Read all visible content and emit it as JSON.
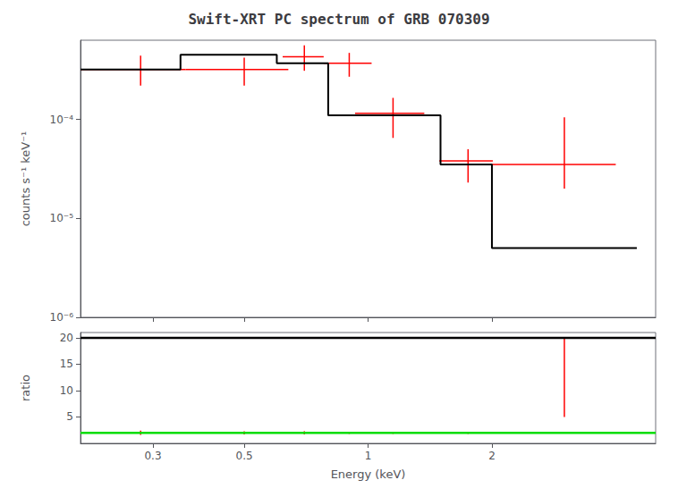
{
  "chart_data": [
    {
      "type": "line",
      "title": "Swift-XRT PC spectrum of GRB 070309",
      "ylabel": "counts s⁻¹ keV⁻¹",
      "log": true,
      "grid": false,
      "tick_labels": "y",
      "xlim": [
        0.2,
        5.0
      ],
      "xticks": [
        0.3,
        0.5,
        1,
        2
      ],
      "ylim": [
        1e-06,
        0.000630957344480193
      ],
      "yticks": [
        {
          "value": 1e-06,
          "label": "10⁻⁶"
        },
        {
          "value": 1e-05,
          "label": "10⁻⁵"
        },
        {
          "value": 0.0001,
          "label": "10⁻⁴"
        }
      ],
      "series": [
        {
          "type": "line",
          "color": "#000000",
          "x": [
            0.2,
            0.35,
            0.35,
            0.6,
            0.6,
            0.8,
            0.8,
            1.5,
            1.5,
            2.0,
            2.0,
            4.5
          ],
          "values": [
            0.00032,
            0.00032,
            0.00045,
            0.00045,
            0.00037,
            0.00037,
            0.00011,
            0.00011,
            3.5e-05,
            3.5e-05,
            5e-06,
            5e-06
          ]
        },
        {
          "type": "errorbar",
          "color": "#ff0000",
          "x": [
            0.28,
            0.5,
            0.7,
            0.9,
            1.15,
            1.75,
            3.0
          ],
          "values": [
            0.00032,
            0.00032,
            0.00043,
            0.00037,
            0.000115,
            3.8e-05,
            3.5e-05
          ],
          "xerr_lo": [
            0.08,
            0.14,
            0.08,
            0.12,
            0.22,
            0.26,
            1.0
          ],
          "xerr_hi": [
            0.08,
            0.14,
            0.08,
            0.12,
            0.22,
            0.26,
            1.0
          ],
          "yerr_lo": [
            0.0001,
            0.0001,
            0.00012,
            0.0001,
            5e-05,
            1.5e-05,
            1.5e-05
          ],
          "yerr_hi": [
            0.00012,
            0.0001,
            0.00013,
            0.0001,
            5e-05,
            1.2e-05,
            7e-05
          ]
        }
      ]
    },
    {
      "type": "line",
      "xlabel": "Energy (keV)",
      "ylabel": "ratio",
      "log": "x",
      "grid": false,
      "xlim": [
        0.2,
        5.0
      ],
      "xticks": [
        0.3,
        0.5,
        1,
        2
      ],
      "ylim": [
        0,
        21
      ],
      "yticks": [
        5,
        10,
        15,
        20
      ],
      "series": [
        {
          "type": "hline",
          "color": "#00dd00",
          "values": [
            2.0
          ]
        },
        {
          "type": "hline",
          "color": "#000000",
          "values": [
            20.0
          ]
        },
        {
          "type": "errorbar",
          "color": "#ff0000",
          "x": [
            0.28,
            0.5,
            0.7,
            0.9,
            1.15,
            1.75,
            3.0
          ],
          "values": [
            2.0,
            2.0,
            2.0,
            2.0,
            2.0,
            2.0,
            20.0
          ],
          "xerr": [
            0.08,
            0.14,
            0.08,
            0.12,
            0.22,
            0.26,
            1.0
          ],
          "yerr_lo": [
            0.4,
            0.3,
            0.3,
            0.2,
            0.2,
            0.2,
            15.0
          ],
          "yerr_hi": [
            0.4,
            0.3,
            0.3,
            0.2,
            0.2,
            0.2,
            0.01
          ]
        }
      ]
    }
  ]
}
